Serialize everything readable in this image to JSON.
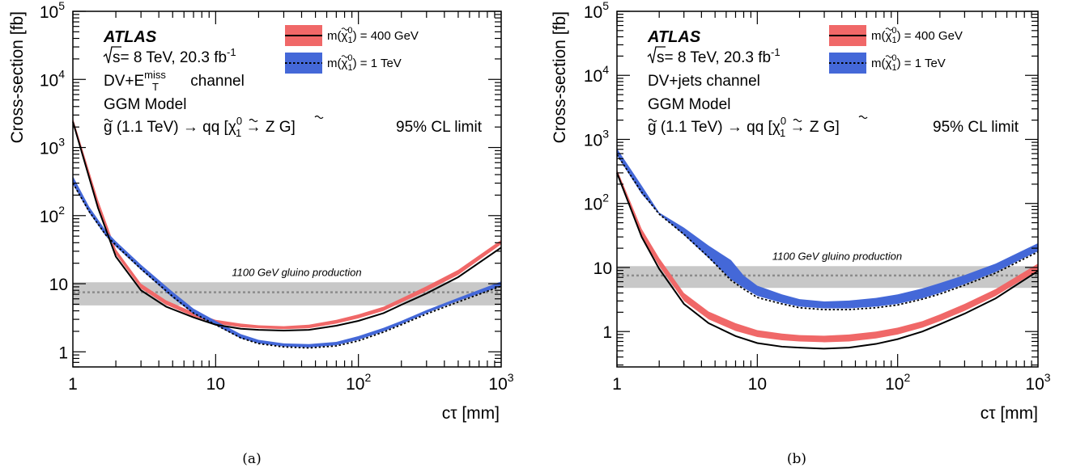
{
  "chart_data": [
    {
      "type": "line",
      "panel_label": "(a)",
      "xlabel": "cτ [mm]",
      "ylabel": "Cross-section [fb]",
      "xscale": "log",
      "yscale": "log",
      "xlim": [
        1,
        1000
      ],
      "ylim": [
        0.6,
        100000
      ],
      "xticks": [
        {
          "v": 1,
          "m": "1"
        },
        {
          "v": 10,
          "m": "10"
        },
        {
          "v": 100,
          "m": "10",
          "e": "2"
        },
        {
          "v": 1000,
          "m": "10",
          "e": "3"
        }
      ],
      "yticks": [
        {
          "v": 1,
          "m": "1"
        },
        {
          "v": 10,
          "m": "10"
        },
        {
          "v": 100,
          "m": "10",
          "e": "2"
        },
        {
          "v": 1000,
          "m": "10",
          "e": "3"
        },
        {
          "v": 10000,
          "m": "10",
          "e": "4"
        },
        {
          "v": 100000,
          "m": "10",
          "e": "5"
        }
      ],
      "info": {
        "atlas": "ATLAS",
        "energy": "s= 8 TeV, 20.3 fb",
        "energy_exp": "-1",
        "channel": "DV+E",
        "channel_sup": "miss",
        "channel_sub": "T",
        "channel_rest": " channel",
        "model": "GGM Model",
        "process": "g (1.1 TeV) → qq [χ",
        "process_sup": "0",
        "process_sub": "1",
        "process_rest": " → Z G]",
        "cl": "95% CL limit"
      },
      "legend": {
        "m400": "m(χ",
        "m400_rest": ") = 400 GeV",
        "m1tev": "m(χ",
        "m1tev_rest": ") = 1 TeV",
        "sup": "0",
        "sub": "1"
      },
      "gluino": {
        "label": "1100 GeV gluino production",
        "central": 7.5,
        "low": 4.8,
        "high": 10.5
      },
      "series": [
        {
          "name": "m(χ̃₁⁰) = 400 GeV",
          "color": "#f06868",
          "line": "solid",
          "x": [
            1,
            1.5,
            2,
            3,
            4.5,
            7,
            10,
            15,
            20,
            30,
            45,
            70,
            100,
            150,
            200,
            300,
            500,
            1000
          ],
          "band_lo": [
            2400,
            140,
            27,
            8.5,
            4.9,
            3.3,
            2.6,
            2.3,
            2.22,
            2.15,
            2.22,
            2.6,
            3.1,
            4.0,
            5.3,
            7.8,
            13.5,
            38
          ],
          "band_hi": [
            2700,
            170,
            32,
            10,
            5.7,
            3.8,
            2.95,
            2.6,
            2.45,
            2.38,
            2.5,
            2.95,
            3.55,
            4.6,
            6.1,
            9.2,
            16,
            44
          ],
          "line_y": [
            2400,
            130,
            25,
            8.0,
            4.6,
            3.2,
            2.5,
            2.18,
            2.1,
            2.05,
            2.1,
            2.42,
            2.85,
            3.7,
            4.9,
            7.2,
            12.5,
            34
          ]
        },
        {
          "name": "m(χ̃₁⁰) = 1 TeV",
          "color": "#4468d8",
          "line": "dotted",
          "x": [
            1,
            1.3,
            1.7,
            2,
            3,
            5,
            7,
            10,
            15,
            20,
            30,
            45,
            70,
            100,
            150,
            200,
            300,
            500,
            1000
          ],
          "band_lo": [
            290,
            110,
            50,
            35,
            16,
            6.2,
            3.6,
            2.45,
            1.58,
            1.33,
            1.2,
            1.16,
            1.25,
            1.5,
            2.0,
            2.55,
            3.7,
            5.6,
            9.2
          ],
          "band_hi": [
            380,
            135,
            60,
            42,
            19,
            7.6,
            4.3,
            2.85,
            1.82,
            1.5,
            1.33,
            1.3,
            1.4,
            1.7,
            2.25,
            2.85,
            4.1,
            6.2,
            10.8
          ],
          "line_y": [
            300,
            115,
            52,
            37,
            16.5,
            6.5,
            3.7,
            2.5,
            1.6,
            1.32,
            1.18,
            1.14,
            1.22,
            1.45,
            1.95,
            2.5,
            3.6,
            5.4,
            9.2
          ]
        }
      ]
    },
    {
      "type": "line",
      "panel_label": "(b)",
      "xlabel": "cτ [mm]",
      "ylabel": "Cross-section [fb]",
      "xscale": "log",
      "yscale": "log",
      "xlim": [
        1,
        1000
      ],
      "ylim": [
        0.28,
        100000
      ],
      "xticks": [
        {
          "v": 1,
          "m": "1"
        },
        {
          "v": 10,
          "m": "10"
        },
        {
          "v": 100,
          "m": "10",
          "e": "2"
        },
        {
          "v": 1000,
          "m": "10",
          "e": "3"
        }
      ],
      "yticks": [
        {
          "v": 1,
          "m": "1"
        },
        {
          "v": 10,
          "m": "10"
        },
        {
          "v": 100,
          "m": "10",
          "e": "2"
        },
        {
          "v": 1000,
          "m": "10",
          "e": "3"
        },
        {
          "v": 10000,
          "m": "10",
          "e": "4"
        },
        {
          "v": 100000,
          "m": "10",
          "e": "5"
        }
      ],
      "info": {
        "atlas": "ATLAS",
        "energy": "s= 8 TeV, 20.3 fb",
        "energy_exp": "-1",
        "channel": "DV+jets channel",
        "channel_sup": "",
        "channel_sub": "",
        "channel_rest": "",
        "model": "GGM Model",
        "process": "g (1.1 TeV) → qq [χ",
        "process_sup": "0",
        "process_sub": "1",
        "process_rest": " → Z G]",
        "cl": "95% CL limit"
      },
      "legend": {
        "m400": "m(χ",
        "m400_rest": ") = 400 GeV",
        "m1tev": "m(χ",
        "m1tev_rest": ") = 1 TeV",
        "sup": "0",
        "sub": "1"
      },
      "gluino": {
        "label": "1100 GeV gluino production",
        "central": 7.5,
        "low": 4.8,
        "high": 10.5
      },
      "series": [
        {
          "name": "m(χ̃₁⁰) = 400 GeV",
          "color": "#f06868",
          "line": "solid",
          "x": [
            1,
            1.5,
            2,
            3,
            4.5,
            7,
            10,
            15,
            20,
            30,
            45,
            70,
            100,
            150,
            200,
            300,
            500,
            1000
          ],
          "band_lo": [
            290,
            30,
            10.5,
            3.0,
            1.55,
            1.02,
            0.82,
            0.73,
            0.7,
            0.68,
            0.7,
            0.78,
            0.9,
            1.15,
            1.45,
            2.1,
            3.6,
            9.0
          ],
          "band_hi": [
            340,
            40,
            14,
            4.0,
            2.05,
            1.35,
            1.05,
            0.93,
            0.88,
            0.86,
            0.9,
            1.0,
            1.15,
            1.45,
            1.85,
            2.7,
            4.6,
            11.5
          ],
          "line_y": [
            300,
            30,
            9.5,
            2.7,
            1.35,
            0.85,
            0.66,
            0.58,
            0.56,
            0.54,
            0.56,
            0.64,
            0.76,
            1.0,
            1.3,
            1.9,
            3.3,
            8.8
          ]
        },
        {
          "name": "m(χ̃₁⁰) = 1 TeV",
          "color": "#4468d8",
          "line": "dotted",
          "x": [
            1,
            1.5,
            2,
            3,
            4.5,
            6.5,
            8,
            10,
            15,
            20,
            30,
            45,
            70,
            100,
            150,
            200,
            300,
            500,
            1000
          ],
          "band_lo": [
            560,
            140,
            68,
            32,
            14,
            6.5,
            4.8,
            3.6,
            2.8,
            2.45,
            2.3,
            2.3,
            2.45,
            2.7,
            3.3,
            4.0,
            5.5,
            8.5,
            18
          ],
          "band_hi": [
            720,
            190,
            72,
            42,
            22,
            13,
            7.5,
            5.2,
            3.8,
            3.2,
            2.95,
            3.05,
            3.35,
            3.8,
            4.7,
            5.7,
            7.6,
            11.5,
            24
          ],
          "line_y": [
            580,
            150,
            68,
            33,
            14.5,
            6.3,
            4.6,
            3.4,
            2.7,
            2.35,
            2.2,
            2.2,
            2.35,
            2.6,
            3.2,
            3.85,
            5.3,
            8.2,
            17.5
          ]
        }
      ]
    }
  ]
}
